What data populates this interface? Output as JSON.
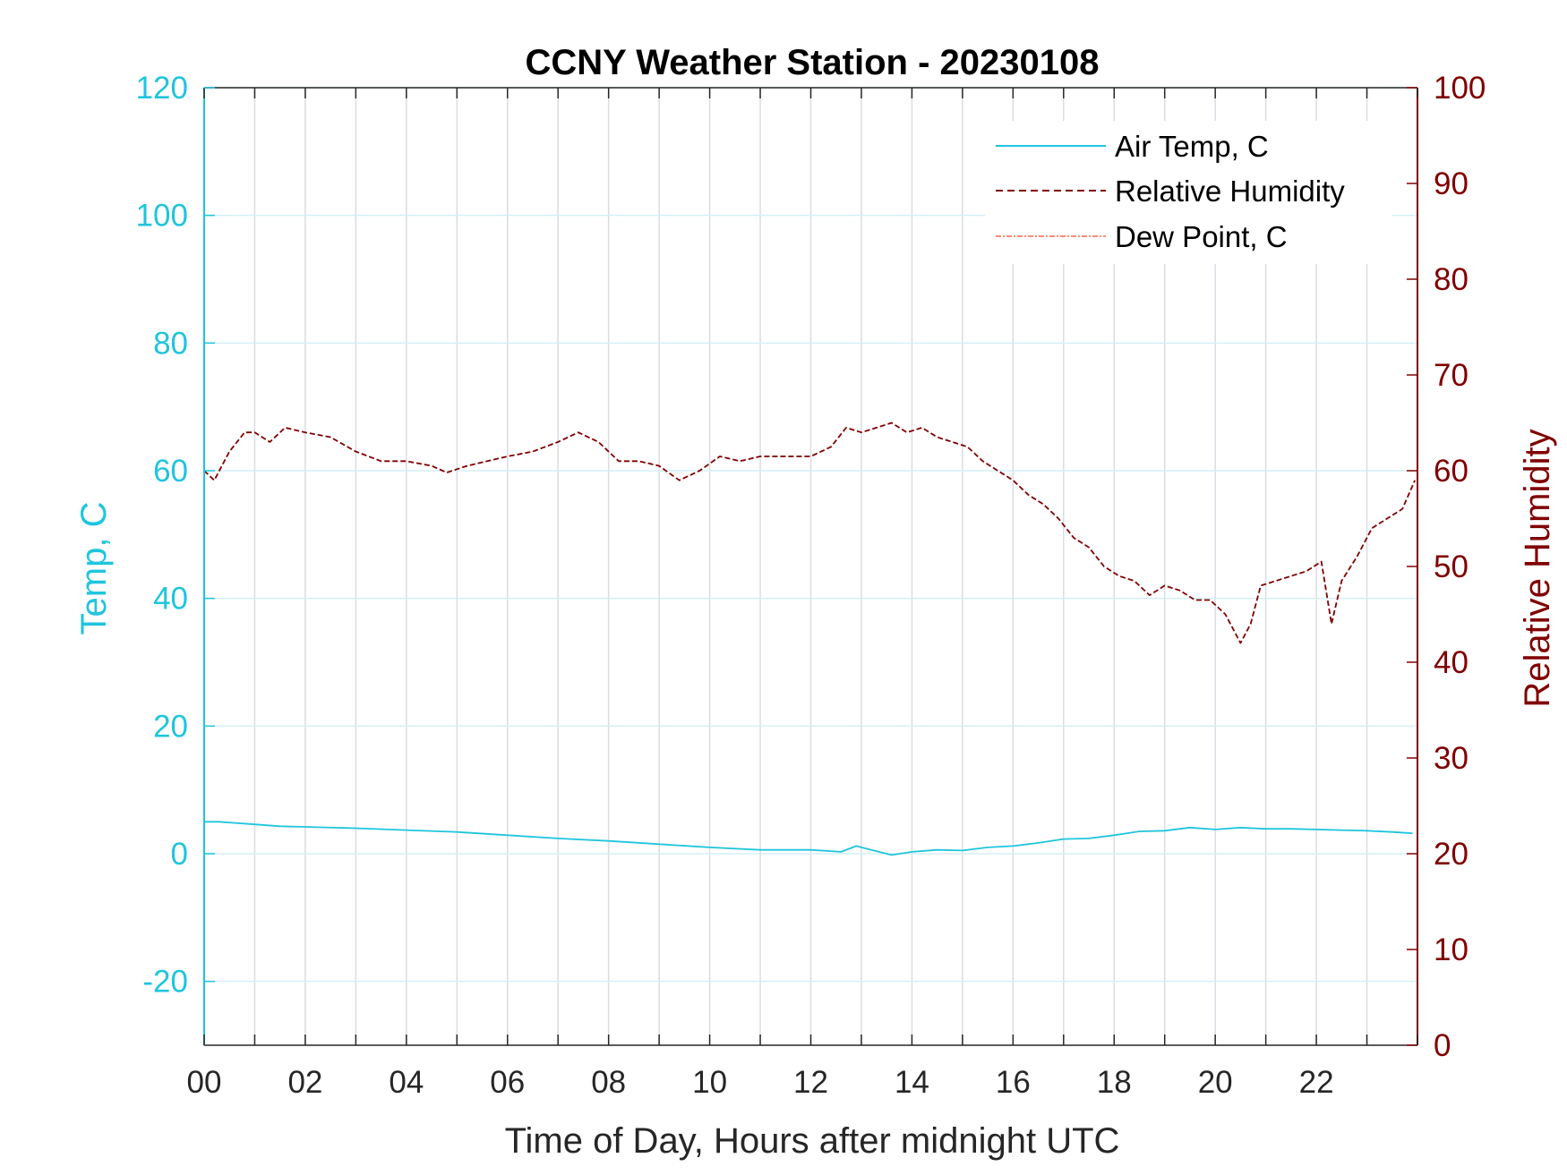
{
  "chart_data": {
    "type": "line",
    "title": "CCNY Weather Station - 20230108",
    "xlabel": "Time of Day, Hours after midnight UTC",
    "ylabel_left": "Temp, C",
    "ylabel_right": "Relative Humidity",
    "xlim": [
      0,
      24
    ],
    "ylim_left": [
      -30,
      120
    ],
    "ylim_right": [
      0,
      100
    ],
    "x_ticks": [
      "00",
      "02",
      "04",
      "06",
      "08",
      "10",
      "12",
      "14",
      "16",
      "18",
      "20",
      "22"
    ],
    "y_ticks_left": [
      "-20",
      "0",
      "20",
      "40",
      "60",
      "80",
      "100",
      "120"
    ],
    "y_ticks_right": [
      "0",
      "10",
      "20",
      "30",
      "40",
      "50",
      "60",
      "70",
      "80",
      "90",
      "100"
    ],
    "grid": true,
    "legend_position": "top-right",
    "colors": {
      "air_temp": "#1fc5dd",
      "relative_humidity": "#800000",
      "dew_point": "#ff6347",
      "grid_vertical": "#d9dde3",
      "grid_horizontal": "#d4f0f6"
    },
    "series": [
      {
        "name": "Air Temp, C",
        "axis": "left",
        "style": "solid",
        "x": [
          0,
          0.3,
          1,
          1.5,
          2,
          3,
          4,
          5,
          6,
          7,
          8,
          9,
          10,
          11,
          12,
          12.6,
          12.9,
          13.2,
          13.6,
          14,
          14.5,
          15,
          15.5,
          16,
          16.5,
          17,
          17.5,
          18,
          18.5,
          19,
          19.5,
          20,
          20.5,
          21,
          21.5,
          22,
          22.5,
          23,
          23.5,
          23.9
        ],
        "values": [
          5,
          5,
          4.6,
          4.3,
          4.2,
          4,
          3.7,
          3.4,
          2.9,
          2.4,
          2,
          1.5,
          1,
          0.6,
          0.6,
          0.3,
          1.2,
          0.6,
          -0.2,
          0.3,
          0.6,
          0.5,
          1,
          1.2,
          1.7,
          2.3,
          2.4,
          2.9,
          3.5,
          3.6,
          4.1,
          3.8,
          4.1,
          3.9,
          3.9,
          3.8,
          3.7,
          3.6,
          3.4,
          3.2
        ]
      },
      {
        "name": "Relative Humidity",
        "axis": "right",
        "style": "dashed",
        "x": [
          0,
          0.2,
          0.5,
          0.8,
          1.0,
          1.3,
          1.6,
          2.0,
          2.5,
          3.0,
          3.5,
          4.0,
          4.5,
          4.8,
          5.2,
          5.6,
          6.0,
          6.5,
          7.0,
          7.4,
          7.8,
          8.2,
          8.6,
          9.0,
          9.4,
          9.8,
          10.2,
          10.6,
          11.0,
          11.5,
          12.0,
          12.4,
          12.7,
          13.0,
          13.3,
          13.6,
          13.9,
          14.2,
          14.5,
          14.8,
          15.1,
          15.4,
          15.7,
          16.0,
          16.3,
          16.6,
          16.9,
          17.2,
          17.5,
          17.8,
          18.1,
          18.4,
          18.7,
          19.0,
          19.3,
          19.6,
          19.9,
          20.2,
          20.5,
          20.7,
          20.9,
          21.2,
          21.5,
          21.8,
          22.1,
          22.3,
          22.5,
          22.8,
          23.1,
          23.4,
          23.7,
          23.95
        ],
        "values": [
          60,
          59,
          62,
          64,
          64,
          63,
          64.5,
          64,
          63.5,
          62,
          61,
          61,
          60.5,
          59.8,
          60.5,
          61,
          61.5,
          62,
          63,
          64,
          63,
          61,
          61,
          60.5,
          59,
          60,
          61.5,
          61,
          61.5,
          61.5,
          61.5,
          62.5,
          64.5,
          64,
          64.5,
          65,
          64,
          64.5,
          63.5,
          63,
          62.5,
          61,
          60,
          59,
          57.5,
          56.5,
          55,
          53,
          52,
          50,
          49,
          48.5,
          47,
          48,
          47.5,
          46.5,
          46.5,
          45,
          42,
          44,
          48,
          48.5,
          49,
          49.5,
          50.5,
          44,
          48.5,
          51,
          54,
          55,
          56,
          59
        ]
      },
      {
        "name": "Dew Point, C",
        "axis": "left",
        "style": "dash-dot",
        "x": [],
        "values": []
      }
    ]
  }
}
